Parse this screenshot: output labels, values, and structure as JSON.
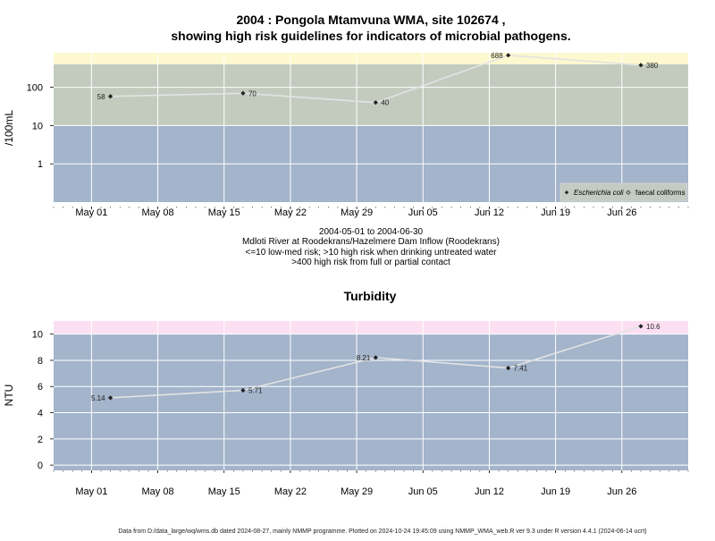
{
  "page": {
    "title_line1": "2004 : Pongola Mtamvuna WMA, site 102674 ,",
    "title_line2": "showing high risk guidelines for indicators of microbial pathogens.",
    "footer": "Data from D:/data_large/wq/wms.db dated 2024-08-27, mainly NMMP programme. Plotted on 2024-10-24 19:45:09 using NMMP_WMA_web.R ver 9.3 under R version 4.4.1 (2024-06-14 ucrt)"
  },
  "colors": {
    "band_low": "#a3b4cb",
    "band_mid": "#c3cbbf",
    "band_high_micro": "#fdf8cf",
    "band_high_turb": "#fcdff3",
    "gridline": "#ffffff",
    "series_line": "#e3e3e3",
    "marker": "#222222"
  },
  "micro": {
    "ylabel": "/100mL",
    "caption": [
      "2004-05-01 to 2004-06-30",
      "Mdloti River at Roodekrans/Hazelmere Dam Inflow (Roodekrans)",
      "<=10 low-med risk; >10 high risk when drinking untreated water",
      ">400 high risk from full or partial contact"
    ],
    "legend": {
      "placement": "bottom-right",
      "items": [
        "Escherichia coli",
        "faecal coliforms"
      ]
    }
  },
  "turb": {
    "title": "Turbidity",
    "ylabel": "NTU"
  },
  "chart_data": [
    {
      "type": "line",
      "title": "2004 : Pongola Mtamvuna WMA, site 102674 , showing high risk guidelines for indicators of microbial pathogens.",
      "xlabel": "",
      "ylabel": "/100mL",
      "yscale": "log",
      "xlim": [
        "2004-04-27",
        "2004-07-03"
      ],
      "ylim": [
        0.1,
        800
      ],
      "x_ticks": [
        "May 01",
        "May 08",
        "May 15",
        "May 22",
        "May 29",
        "Jun 05",
        "Jun 12",
        "Jun 19",
        "Jun 26"
      ],
      "x_tick_dates": [
        "2004-05-01",
        "2004-05-08",
        "2004-05-15",
        "2004-05-22",
        "2004-05-29",
        "2004-06-05",
        "2004-06-12",
        "2004-06-19",
        "2004-06-26"
      ],
      "y_ticks": [
        1,
        10,
        100
      ],
      "y_tick_labels": [
        "1",
        "10",
        "100"
      ],
      "bands": [
        {
          "from": 0.1,
          "to": 10,
          "color": "#a3b4cb"
        },
        {
          "from": 10,
          "to": 400,
          "color": "#c3cbbf"
        },
        {
          "from": 400,
          "to": 800,
          "color": "#fdf8cf"
        }
      ],
      "series": [
        {
          "name": "Escherichia coli",
          "points": [
            {
              "x": "2004-05-03",
              "y": 58,
              "label": "58",
              "label_side": "left"
            },
            {
              "x": "2004-05-17",
              "y": 70,
              "label": "70",
              "label_side": "right"
            },
            {
              "x": "2004-05-31",
              "y": 40,
              "label": "40",
              "label_side": "right"
            },
            {
              "x": "2004-06-14",
              "y": 688,
              "label": "688",
              "label_side": "left"
            },
            {
              "x": "2004-06-28",
              "y": 380,
              "label": "380",
              "label_side": "right"
            }
          ]
        }
      ],
      "grid": true,
      "legend": "bottom-right"
    },
    {
      "type": "line",
      "title": "Turbidity",
      "xlabel": "",
      "ylabel": "NTU",
      "yscale": "linear",
      "xlim": [
        "2004-04-27",
        "2004-07-03"
      ],
      "ylim": [
        -0.4,
        11
      ],
      "x_ticks": [
        "May 01",
        "May 08",
        "May 15",
        "May 22",
        "May 29",
        "Jun 05",
        "Jun 12",
        "Jun 19",
        "Jun 26"
      ],
      "x_tick_dates": [
        "2004-05-01",
        "2004-05-08",
        "2004-05-15",
        "2004-05-22",
        "2004-05-29",
        "2004-06-05",
        "2004-06-12",
        "2004-06-19",
        "2004-06-26"
      ],
      "y_ticks": [
        0,
        2,
        4,
        6,
        8,
        10
      ],
      "y_tick_labels": [
        "0",
        "2",
        "4",
        "6",
        "8",
        "10"
      ],
      "bands": [
        {
          "from": -0.4,
          "to": 10,
          "color": "#a3b4cb"
        },
        {
          "from": 10,
          "to": 11,
          "color": "#fcdff3"
        }
      ],
      "series": [
        {
          "name": "",
          "points": [
            {
              "x": "2004-05-03",
              "y": 5.14,
              "label": "5.14",
              "label_side": "left"
            },
            {
              "x": "2004-05-17",
              "y": 5.71,
              "label": "5.71",
              "label_side": "right"
            },
            {
              "x": "2004-05-31",
              "y": 8.21,
              "label": "8.21",
              "label_side": "left"
            },
            {
              "x": "2004-06-14",
              "y": 7.41,
              "label": "7.41",
              "label_side": "right"
            },
            {
              "x": "2004-06-28",
              "y": 10.6,
              "label": "10.6",
              "label_side": "right"
            }
          ]
        }
      ],
      "grid": true,
      "legend": "none"
    }
  ]
}
